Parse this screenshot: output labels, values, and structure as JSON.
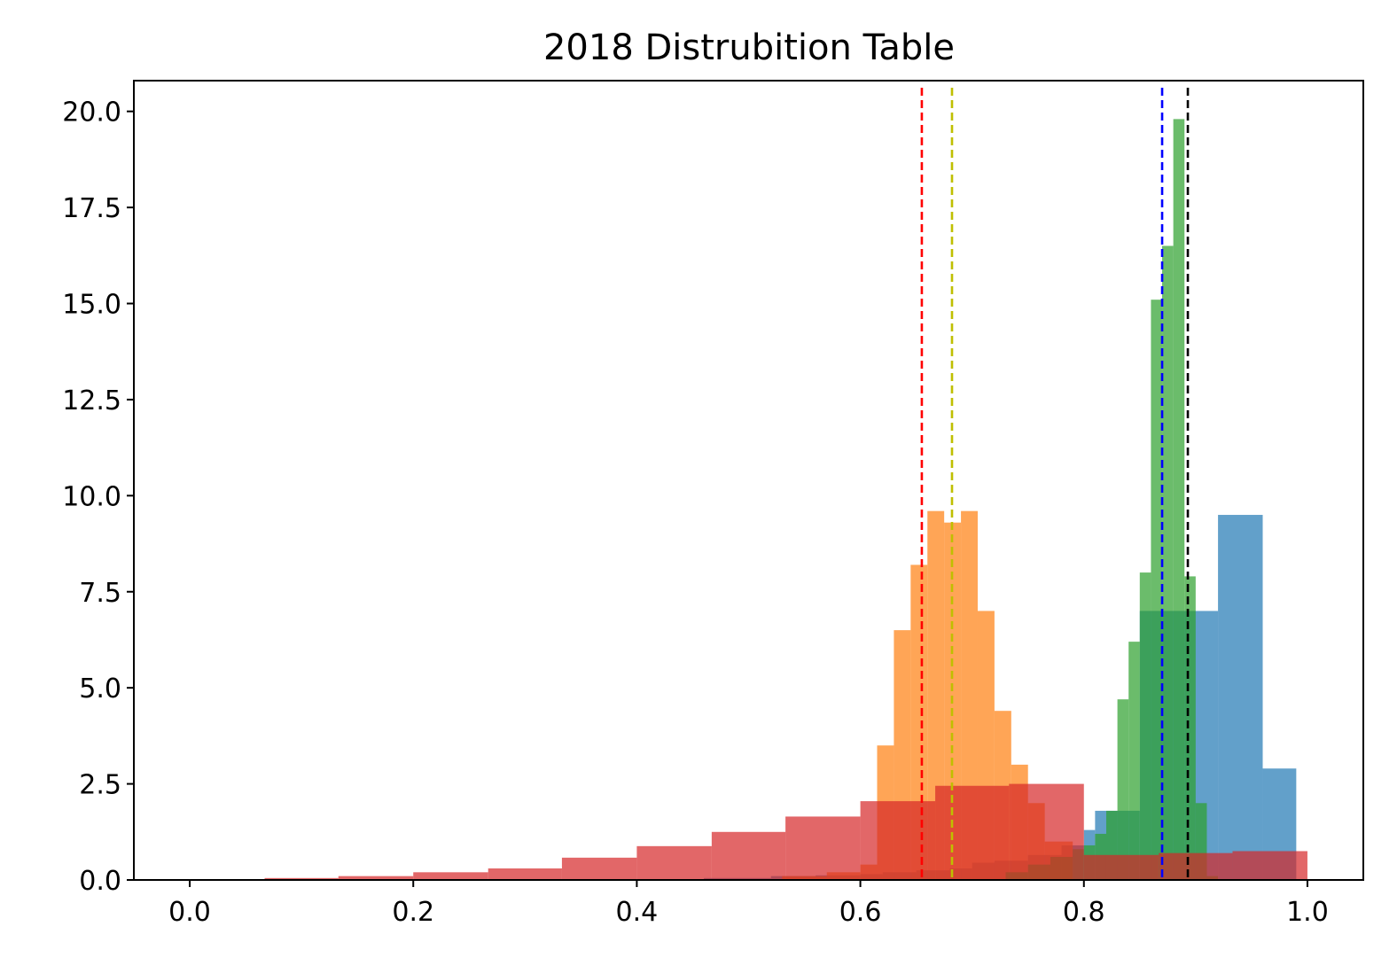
{
  "chart_data": {
    "type": "histogram",
    "title": "2018 Distrubition Table",
    "xlabel": "",
    "ylabel": "",
    "xlim": [
      -0.05,
      1.05
    ],
    "ylim": [
      0,
      20.8
    ],
    "xticks": [
      "0.0",
      "0.2",
      "0.4",
      "0.6",
      "0.8",
      "1.0"
    ],
    "yticks": [
      "0.0",
      "2.5",
      "5.0",
      "7.5",
      "10.0",
      "12.5",
      "15.0",
      "17.5",
      "20.0"
    ],
    "grid": false,
    "legend": "none",
    "series": [
      {
        "color": "#1f77b4",
        "alpha": 0.7,
        "bin_edges": [
          0.46,
          0.52,
          0.56,
          0.6,
          0.62,
          0.65,
          0.68,
          0.7,
          0.72,
          0.75,
          0.78,
          0.8,
          0.81,
          0.85,
          0.87,
          0.92,
          0.96,
          0.99
        ],
        "heights": [
          0.05,
          0.1,
          0.12,
          0.15,
          0.2,
          0.25,
          0.3,
          0.45,
          0.5,
          0.65,
          0.9,
          1.3,
          1.8,
          7.0,
          7.0,
          9.5,
          2.9
        ]
      },
      {
        "color": "#ff7f0e",
        "alpha": 0.7,
        "bin_edges": [
          0.53,
          0.57,
          0.6,
          0.615,
          0.63,
          0.645,
          0.66,
          0.675,
          0.69,
          0.705,
          0.72,
          0.735,
          0.75,
          0.765,
          0.79
        ],
        "heights": [
          0.1,
          0.2,
          0.4,
          3.5,
          6.5,
          8.2,
          9.6,
          9.3,
          9.6,
          7.0,
          4.4,
          3.0,
          2.0,
          1.0
        ]
      },
      {
        "color": "#2ca02c",
        "alpha": 0.7,
        "bin_edges": [
          0.73,
          0.75,
          0.77,
          0.79,
          0.8,
          0.81,
          0.82,
          0.83,
          0.84,
          0.85,
          0.86,
          0.87,
          0.88,
          0.89,
          0.9,
          0.91,
          0.92
        ],
        "heights": [
          0.2,
          0.4,
          0.6,
          0.8,
          0.9,
          1.2,
          1.8,
          4.7,
          6.2,
          8.0,
          15.1,
          16.5,
          19.8,
          7.9,
          2.0,
          0.1
        ]
      },
      {
        "color": "#d62728",
        "alpha": 0.7,
        "bin_edges": [
          0.0,
          0.067,
          0.133,
          0.2,
          0.267,
          0.333,
          0.4,
          0.467,
          0.533,
          0.6,
          0.667,
          0.733,
          0.8,
          0.867,
          0.933,
          1.0
        ],
        "heights": [
          0.02,
          0.05,
          0.1,
          0.2,
          0.3,
          0.58,
          0.88,
          1.25,
          1.65,
          2.05,
          2.45,
          2.5,
          0.65,
          0.7,
          0.75
        ]
      }
    ],
    "vlines": [
      {
        "x": 0.655,
        "color": "#ff0000",
        "style": "dashed"
      },
      {
        "x": 0.682,
        "color": "#bfbf00",
        "style": "dashed"
      },
      {
        "x": 0.87,
        "color": "#0000ff",
        "style": "dashed"
      },
      {
        "x": 0.893,
        "color": "#000000",
        "style": "dashed"
      }
    ]
  }
}
